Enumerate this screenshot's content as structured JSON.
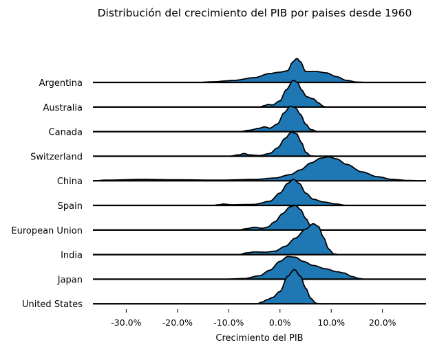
{
  "chart_data": {
    "type": "ridgeline",
    "title": "Distribución del crecimiento del PIB por paises desde 1960",
    "xlabel": "Crecimiento del PIB",
    "ylabel": "",
    "xlim": [
      -36.5,
      28.5
    ],
    "xticks": [
      -30,
      -20,
      -10,
      0,
      10,
      20
    ],
    "xtick_labels": [
      "-30.0%",
      "-20.0%",
      "-10.0%",
      "0.0%",
      "10.0%",
      "20.0%"
    ],
    "fill_color": "#1f77b4",
    "line_color": "#000000",
    "series": [
      {
        "name": "Argentina",
        "profile": [
          [
            -36.5,
            0
          ],
          [
            -16,
            0
          ],
          [
            -13,
            0.02
          ],
          [
            -9,
            0.06
          ],
          [
            -5,
            0.14
          ],
          [
            -2,
            0.26
          ],
          [
            0,
            0.3
          ],
          [
            1.5,
            0.34
          ],
          [
            2.5,
            0.6
          ],
          [
            3.3,
            0.7
          ],
          [
            4,
            0.6
          ],
          [
            5,
            0.32
          ],
          [
            7,
            0.32
          ],
          [
            9,
            0.28
          ],
          [
            11,
            0.17
          ],
          [
            13,
            0.06
          ],
          [
            15,
            0.01
          ],
          [
            17,
            0
          ],
          [
            28.5,
            0
          ]
        ]
      },
      {
        "name": "Australia",
        "profile": [
          [
            -36.5,
            0
          ],
          [
            -4,
            0
          ],
          [
            -3,
            0.04
          ],
          [
            -2.3,
            0.08
          ],
          [
            -1.5,
            0.06
          ],
          [
            0,
            0.18
          ],
          [
            1.2,
            0.5
          ],
          [
            2.6,
            0.78
          ],
          [
            3.4,
            0.72
          ],
          [
            4.2,
            0.5
          ],
          [
            5.2,
            0.3
          ],
          [
            6.5,
            0.24
          ],
          [
            7.5,
            0.12
          ],
          [
            8.5,
            0.02
          ],
          [
            9,
            0
          ],
          [
            28.5,
            0
          ]
        ]
      },
      {
        "name": "Canada",
        "profile": [
          [
            -36.5,
            0
          ],
          [
            -8,
            0
          ],
          [
            -6,
            0.04
          ],
          [
            -4,
            0.1
          ],
          [
            -3,
            0.14
          ],
          [
            -2,
            0.1
          ],
          [
            -0.5,
            0.22
          ],
          [
            0.8,
            0.55
          ],
          [
            2,
            0.74
          ],
          [
            3,
            0.7
          ],
          [
            4,
            0.5
          ],
          [
            5,
            0.22
          ],
          [
            6,
            0.06
          ],
          [
            7.5,
            0
          ],
          [
            28.5,
            0
          ]
        ]
      },
      {
        "name": "Switzerland",
        "profile": [
          [
            -36.5,
            0
          ],
          [
            -10,
            0
          ],
          [
            -8,
            0.04
          ],
          [
            -7,
            0.08
          ],
          [
            -6,
            0.04
          ],
          [
            -4,
            0.02
          ],
          [
            -2,
            0.08
          ],
          [
            -0.5,
            0.24
          ],
          [
            1,
            0.52
          ],
          [
            2.2,
            0.7
          ],
          [
            3.2,
            0.66
          ],
          [
            4.2,
            0.4
          ],
          [
            5,
            0.12
          ],
          [
            6,
            0.01
          ],
          [
            7,
            0
          ],
          [
            28.5,
            0
          ]
        ]
      },
      {
        "name": "China",
        "profile": [
          [
            -36.5,
            0
          ],
          [
            -34,
            0.02
          ],
          [
            -27,
            0.04
          ],
          [
            -20,
            0.03
          ],
          [
            -12,
            0.02
          ],
          [
            -5,
            0.04
          ],
          [
            -1,
            0.08
          ],
          [
            2,
            0.18
          ],
          [
            4,
            0.32
          ],
          [
            6,
            0.52
          ],
          [
            8,
            0.66
          ],
          [
            9.5,
            0.7
          ],
          [
            11,
            0.64
          ],
          [
            13,
            0.48
          ],
          [
            16,
            0.26
          ],
          [
            19,
            0.12
          ],
          [
            22,
            0.04
          ],
          [
            25,
            0.01
          ],
          [
            28.5,
            0
          ]
        ]
      },
      {
        "name": "Spain",
        "profile": [
          [
            -36.5,
            0
          ],
          [
            -13,
            0
          ],
          [
            -12,
            0.02
          ],
          [
            -11,
            0.04
          ],
          [
            -9.5,
            0.02
          ],
          [
            -5,
            0.03
          ],
          [
            -2,
            0.12
          ],
          [
            0,
            0.36
          ],
          [
            1.5,
            0.64
          ],
          [
            2.6,
            0.76
          ],
          [
            3.8,
            0.64
          ],
          [
            5,
            0.36
          ],
          [
            6.5,
            0.18
          ],
          [
            8.5,
            0.1
          ],
          [
            11,
            0.04
          ],
          [
            13,
            0
          ],
          [
            28.5,
            0
          ]
        ]
      },
      {
        "name": "European Union",
        "profile": [
          [
            -36.5,
            0
          ],
          [
            -8,
            0
          ],
          [
            -6.5,
            0.04
          ],
          [
            -5,
            0.08
          ],
          [
            -3.5,
            0.05
          ],
          [
            -2.5,
            0.08
          ],
          [
            -1,
            0.24
          ],
          [
            0.5,
            0.48
          ],
          [
            2,
            0.68
          ],
          [
            3,
            0.72
          ],
          [
            4,
            0.6
          ],
          [
            5,
            0.34
          ],
          [
            6,
            0.12
          ],
          [
            7,
            0.02
          ],
          [
            8,
            0
          ],
          [
            28.5,
            0
          ]
        ]
      },
      {
        "name": "India",
        "profile": [
          [
            -36.5,
            0
          ],
          [
            -8,
            0
          ],
          [
            -6.5,
            0.05
          ],
          [
            -5,
            0.08
          ],
          [
            -3,
            0.07
          ],
          [
            -1,
            0.1
          ],
          [
            1,
            0.24
          ],
          [
            3,
            0.48
          ],
          [
            5,
            0.74
          ],
          [
            6.5,
            0.9
          ],
          [
            7.5,
            0.82
          ],
          [
            8.5,
            0.5
          ],
          [
            9.5,
            0.16
          ],
          [
            10.5,
            0.02
          ],
          [
            11.5,
            0
          ],
          [
            28.5,
            0
          ]
        ]
      },
      {
        "name": "Japan",
        "profile": [
          [
            -36.5,
            0
          ],
          [
            -11,
            0
          ],
          [
            -7,
            0.02
          ],
          [
            -4,
            0.1
          ],
          [
            -2,
            0.26
          ],
          [
            0,
            0.52
          ],
          [
            1.5,
            0.66
          ],
          [
            3,
            0.64
          ],
          [
            4.5,
            0.52
          ],
          [
            6.5,
            0.4
          ],
          [
            9,
            0.3
          ],
          [
            11,
            0.22
          ],
          [
            12.5,
            0.18
          ],
          [
            14,
            0.08
          ],
          [
            15.5,
            0.02
          ],
          [
            16.5,
            0
          ],
          [
            28.5,
            0
          ]
        ]
      },
      {
        "name": "United States",
        "profile": [
          [
            -36.5,
            0
          ],
          [
            -4.5,
            0
          ],
          [
            -3.5,
            0.05
          ],
          [
            -2.5,
            0.12
          ],
          [
            -1.5,
            0.18
          ],
          [
            0,
            0.36
          ],
          [
            1.5,
            0.8
          ],
          [
            2.8,
            1.0
          ],
          [
            4,
            0.8
          ],
          [
            5,
            0.46
          ],
          [
            6,
            0.16
          ],
          [
            7,
            0.02
          ],
          [
            7.5,
            0
          ],
          [
            28.5,
            0
          ]
        ]
      }
    ]
  }
}
